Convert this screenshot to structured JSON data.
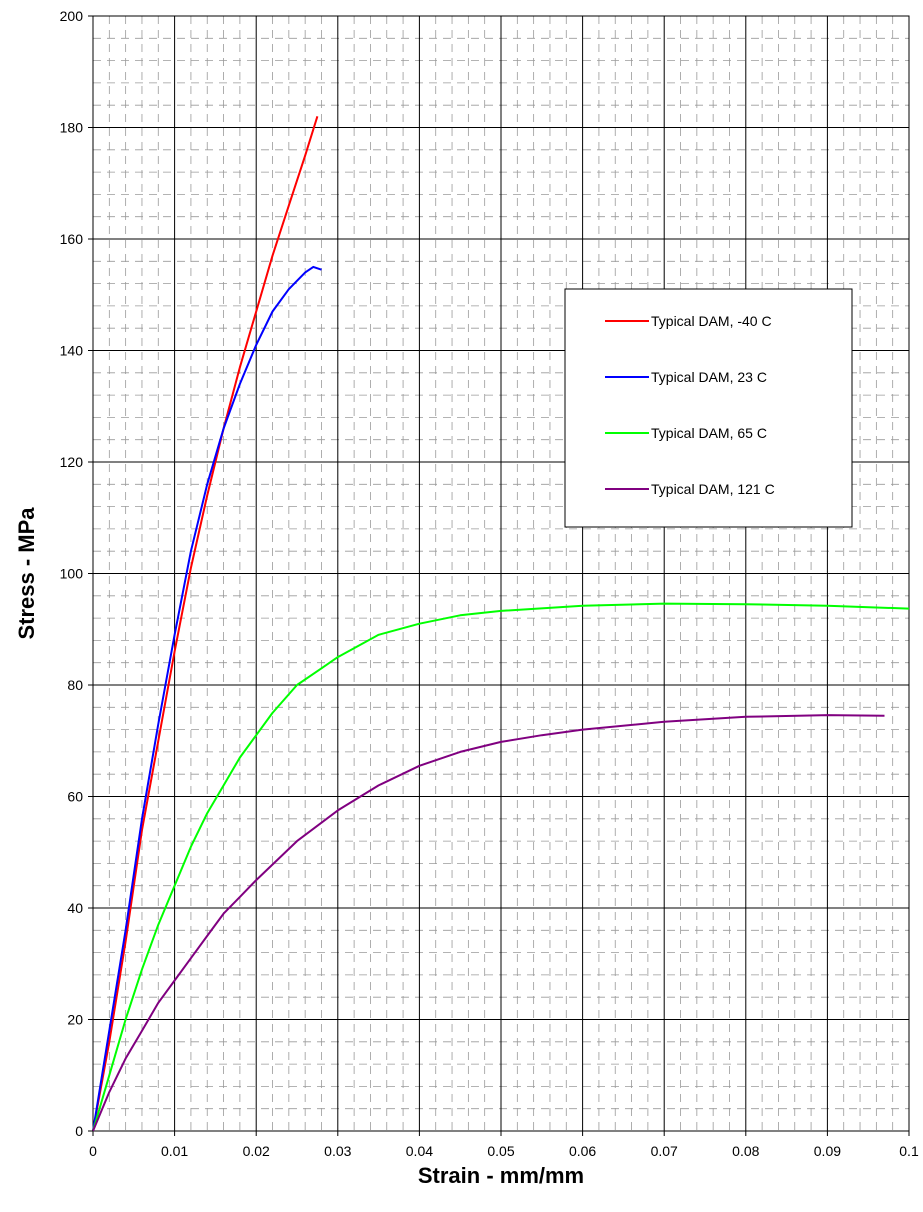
{
  "chart_data": {
    "type": "line",
    "title": "",
    "xlabel": "Strain - mm/mm",
    "ylabel": "Stress - MPa",
    "xlim": [
      0,
      0.1
    ],
    "ylim": [
      0,
      200
    ],
    "xticks": [
      "0",
      "0.01",
      "0.02",
      "0.03",
      "0.04",
      "0.05",
      "0.06",
      "0.07",
      "0.08",
      "0.09",
      "0.1"
    ],
    "yticks": [
      "0",
      "20",
      "40",
      "60",
      "80",
      "100",
      "120",
      "140",
      "160",
      "180",
      "200"
    ],
    "grid": "major solid, minor dashed",
    "legend_position": "upper-right",
    "series": [
      {
        "name": "Typical DAM, -40 C",
        "color": "#ff0000",
        "points": [
          [
            0,
            0
          ],
          [
            0.002,
            16
          ],
          [
            0.004,
            34
          ],
          [
            0.006,
            54
          ],
          [
            0.008,
            70
          ],
          [
            0.01,
            86
          ],
          [
            0.012,
            101
          ],
          [
            0.014,
            114
          ],
          [
            0.016,
            126
          ],
          [
            0.018,
            137
          ],
          [
            0.02,
            147
          ],
          [
            0.022,
            157
          ],
          [
            0.024,
            166
          ],
          [
            0.026,
            175
          ],
          [
            0.0275,
            182
          ]
        ]
      },
      {
        "name": "Typical DAM, 23 C",
        "color": "#0000ff",
        "points": [
          [
            0,
            0
          ],
          [
            0.002,
            18
          ],
          [
            0.004,
            36
          ],
          [
            0.006,
            56
          ],
          [
            0.008,
            73
          ],
          [
            0.01,
            89
          ],
          [
            0.012,
            104
          ],
          [
            0.014,
            116
          ],
          [
            0.016,
            126
          ],
          [
            0.018,
            134
          ],
          [
            0.02,
            141
          ],
          [
            0.022,
            147
          ],
          [
            0.024,
            151
          ],
          [
            0.026,
            154
          ],
          [
            0.027,
            155
          ],
          [
            0.028,
            154.5
          ]
        ]
      },
      {
        "name": "Typical DAM, 65 C",
        "color": "#00ff00",
        "points": [
          [
            0,
            0
          ],
          [
            0.002,
            10
          ],
          [
            0.004,
            20
          ],
          [
            0.006,
            29
          ],
          [
            0.008,
            37
          ],
          [
            0.01,
            44
          ],
          [
            0.012,
            51
          ],
          [
            0.014,
            57
          ],
          [
            0.016,
            62
          ],
          [
            0.018,
            67
          ],
          [
            0.02,
            71
          ],
          [
            0.022,
            75
          ],
          [
            0.025,
            80
          ],
          [
            0.028,
            83
          ],
          [
            0.03,
            85
          ],
          [
            0.035,
            89
          ],
          [
            0.04,
            91
          ],
          [
            0.045,
            92.5
          ],
          [
            0.05,
            93.3
          ],
          [
            0.06,
            94.2
          ],
          [
            0.07,
            94.6
          ],
          [
            0.08,
            94.5
          ],
          [
            0.09,
            94.2
          ],
          [
            0.1,
            93.7
          ]
        ]
      },
      {
        "name": "Typical DAM, 121 C",
        "color": "#800080",
        "points": [
          [
            0,
            0
          ],
          [
            0.002,
            7
          ],
          [
            0.004,
            13
          ],
          [
            0.006,
            18
          ],
          [
            0.008,
            23
          ],
          [
            0.01,
            27
          ],
          [
            0.012,
            31
          ],
          [
            0.014,
            35
          ],
          [
            0.016,
            39
          ],
          [
            0.018,
            42
          ],
          [
            0.02,
            45
          ],
          [
            0.025,
            52
          ],
          [
            0.03,
            57.5
          ],
          [
            0.035,
            62
          ],
          [
            0.04,
            65.5
          ],
          [
            0.045,
            68
          ],
          [
            0.05,
            69.8
          ],
          [
            0.055,
            71
          ],
          [
            0.06,
            72
          ],
          [
            0.07,
            73.4
          ],
          [
            0.08,
            74.3
          ],
          [
            0.09,
            74.6
          ],
          [
            0.097,
            74.5
          ]
        ]
      }
    ]
  }
}
